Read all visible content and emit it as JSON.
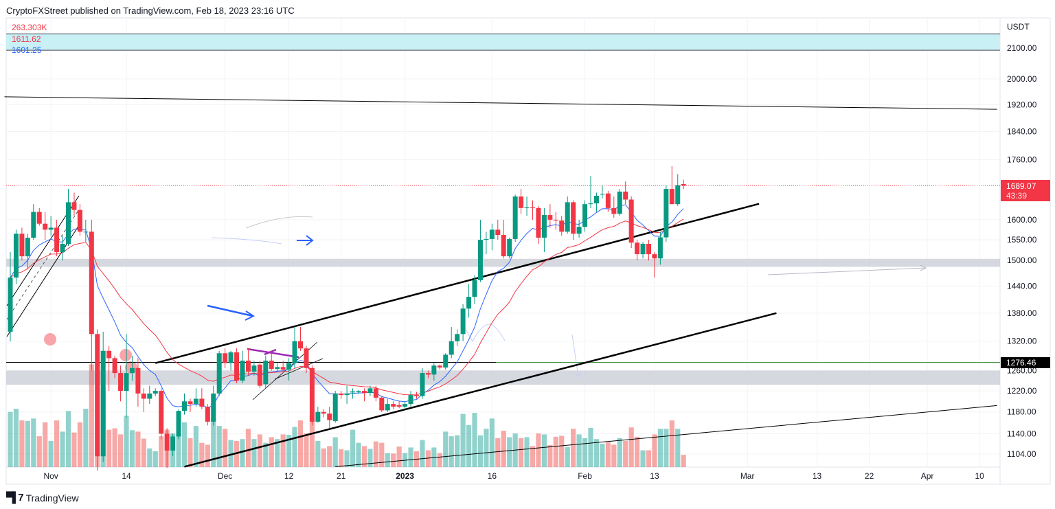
{
  "header": {
    "published": "CryptoFXStreet published on TradingView.com, Feb 18, 2023 23:16 UTC"
  },
  "legend": {
    "volume": "263.303K",
    "ma_red": "1611.62",
    "ma_blue": "1601.25"
  },
  "footer": {
    "brand": "TradingView"
  },
  "colors": {
    "up": "#089981",
    "down": "#f23645",
    "vol_up": "#26a69a",
    "vol_down": "#ef5350",
    "ma_blue": "#2962ff",
    "ma_red": "#f23645",
    "zone_cyan": "#c9f0f5",
    "zone_gray": "#d1d4dc"
  },
  "chart_data": {
    "type": "candlestick",
    "currency": "USDT",
    "y_scale": "log",
    "ylim": [
      1080,
      2160
    ],
    "grid": true,
    "last_price": "1689.07",
    "countdown": "43:39",
    "level_price": "1276.46",
    "y_ticks": [
      "2100.00",
      "2000.00",
      "1920.00",
      "1840.00",
      "1760.00",
      "1600.00",
      "1550.00",
      "1500.00",
      "1440.00",
      "1380.00",
      "1320.00",
      "1260.00",
      "1220.00",
      "1180.00",
      "1140.00",
      "1104.00"
    ],
    "x_ticks": [
      {
        "label": "Nov",
        "date": "2022-11-01"
      },
      {
        "label": "14",
        "date": "2022-11-14"
      },
      {
        "label": "Dec",
        "date": "2022-12-01"
      },
      {
        "label": "12",
        "date": "2022-12-12"
      },
      {
        "label": "21",
        "date": "2022-12-21"
      },
      {
        "label": "2023",
        "date": "2023-01-01",
        "bold": true
      },
      {
        "label": "16",
        "date": "2023-01-16"
      },
      {
        "label": "Feb",
        "date": "2023-02-01"
      },
      {
        "label": "13",
        "date": "2023-02-13"
      },
      {
        "label": "Mar",
        "date": "2023-03-01"
      },
      {
        "label": "13",
        "date": "2023-03-13"
      },
      {
        "label": "22",
        "date": "2023-03-22"
      },
      {
        "label": "Apr",
        "date": "2023-04-01"
      },
      {
        "label": "10",
        "date": "2023-04-10"
      }
    ],
    "series": [
      {
        "type": "ema",
        "period": 9,
        "color": "#2962ff"
      },
      {
        "type": "ema",
        "period": 21,
        "color": "#f23645"
      }
    ],
    "first_date": "2022-10-25",
    "candles_columns": [
      "open",
      "high",
      "low",
      "close",
      "volume_k"
    ],
    "candles": [
      [
        1340,
        1520,
        1320,
        1460,
        1180
      ],
      [
        1460,
        1575,
        1445,
        1565,
        1250
      ],
      [
        1565,
        1580,
        1500,
        1510,
        1000
      ],
      [
        1510,
        1565,
        1480,
        1555,
        990
      ],
      [
        1555,
        1640,
        1550,
        1620,
        1040
      ],
      [
        1620,
        1630,
        1585,
        1590,
        660
      ],
      [
        1590,
        1620,
        1550,
        1575,
        960
      ],
      [
        1575,
        1610,
        1560,
        1580,
        560
      ],
      [
        1580,
        1600,
        1510,
        1520,
        1000
      ],
      [
        1520,
        1560,
        1500,
        1540,
        760
      ],
      [
        1540,
        1680,
        1535,
        1645,
        1200
      ],
      [
        1645,
        1670,
        1610,
        1625,
        740
      ],
      [
        1625,
        1640,
        1560,
        1570,
        960
      ],
      [
        1570,
        1600,
        1545,
        1570,
        1250
      ],
      [
        1570,
        1600,
        1260,
        1335,
        2200
      ],
      [
        1335,
        1345,
        1075,
        1100,
        2250
      ],
      [
        1100,
        1340,
        1090,
        1300,
        1700
      ],
      [
        1300,
        1310,
        1220,
        1285,
        800
      ],
      [
        1285,
        1290,
        1245,
        1255,
        830
      ],
      [
        1255,
        1270,
        1200,
        1220,
        700
      ],
      [
        1220,
        1335,
        1170,
        1255,
        1100
      ],
      [
        1255,
        1290,
        1240,
        1265,
        790
      ],
      [
        1265,
        1285,
        1190,
        1215,
        760
      ],
      [
        1215,
        1225,
        1180,
        1205,
        610
      ],
      [
        1205,
        1230,
        1195,
        1215,
        400
      ],
      [
        1215,
        1225,
        1210,
        1220,
        340
      ],
      [
        1220,
        1225,
        1130,
        1140,
        660
      ],
      [
        1140,
        1150,
        1080,
        1110,
        800
      ],
      [
        1110,
        1140,
        1100,
        1135,
        720
      ],
      [
        1135,
        1185,
        1130,
        1182,
        700
      ],
      [
        1182,
        1215,
        1175,
        1200,
        960
      ],
      [
        1200,
        1205,
        1180,
        1195,
        620
      ],
      [
        1195,
        1225,
        1190,
        1205,
        880
      ],
      [
        1205,
        1225,
        1185,
        1190,
        520
      ],
      [
        1190,
        1195,
        1155,
        1162,
        480
      ],
      [
        1162,
        1230,
        1155,
        1215,
        1050
      ],
      [
        1215,
        1300,
        1210,
        1295,
        880
      ],
      [
        1295,
        1305,
        1265,
        1275,
        820
      ],
      [
        1275,
        1300,
        1260,
        1297,
        580
      ],
      [
        1297,
        1305,
        1235,
        1240,
        560
      ],
      [
        1240,
        1300,
        1235,
        1280,
        600
      ],
      [
        1280,
        1305,
        1250,
        1258,
        820
      ],
      [
        1258,
        1280,
        1250,
        1270,
        600
      ],
      [
        1272,
        1280,
        1225,
        1230,
        700
      ],
      [
        1233,
        1290,
        1225,
        1280,
        520
      ],
      [
        1280,
        1300,
        1260,
        1263,
        640
      ],
      [
        1263,
        1275,
        1258,
        1267,
        600
      ],
      [
        1267,
        1280,
        1255,
        1262,
        700
      ],
      [
        1262,
        1285,
        1240,
        1275,
        690
      ],
      [
        1275,
        1350,
        1265,
        1320,
        860
      ],
      [
        1320,
        1350,
        1300,
        1305,
        1000
      ],
      [
        1305,
        1310,
        1255,
        1265,
        720
      ],
      [
        1265,
        1270,
        1155,
        1162,
        1100
      ],
      [
        1162,
        1190,
        1160,
        1180,
        560
      ],
      [
        1180,
        1185,
        1170,
        1177,
        400
      ],
      [
        1177,
        1190,
        1150,
        1165,
        450
      ],
      [
        1163,
        1220,
        1160,
        1215,
        640
      ],
      [
        1215,
        1220,
        1205,
        1212,
        380
      ],
      [
        1212,
        1230,
        1195,
        1215,
        360
      ],
      [
        1217,
        1225,
        1205,
        1219,
        800
      ],
      [
        1218,
        1222,
        1214,
        1220,
        520
      ],
      [
        1220,
        1225,
        1200,
        1216,
        450
      ],
      [
        1216,
        1230,
        1210,
        1225,
        390
      ],
      [
        1225,
        1230,
        1200,
        1207,
        550
      ],
      [
        1207,
        1210,
        1180,
        1183,
        520
      ],
      [
        1183,
        1205,
        1180,
        1195,
        300
      ],
      [
        1195,
        1200,
        1185,
        1190,
        290
      ],
      [
        1193,
        1200,
        1187,
        1190,
        440
      ],
      [
        1190,
        1200,
        1185,
        1195,
        300
      ],
      [
        1195,
        1220,
        1190,
        1212,
        420
      ],
      [
        1212,
        1218,
        1205,
        1210,
        340
      ],
      [
        1210,
        1265,
        1205,
        1255,
        580
      ],
      [
        1255,
        1260,
        1245,
        1252,
        360
      ],
      [
        1252,
        1275,
        1240,
        1270,
        420
      ],
      [
        1270,
        1272,
        1262,
        1266,
        300
      ],
      [
        1266,
        1295,
        1262,
        1292,
        760
      ],
      [
        1292,
        1350,
        1285,
        1320,
        660
      ],
      [
        1320,
        1345,
        1310,
        1335,
        680
      ],
      [
        1335,
        1400,
        1320,
        1390,
        1140
      ],
      [
        1390,
        1445,
        1370,
        1416,
        900
      ],
      [
        1416,
        1465,
        1400,
        1454,
        1160
      ],
      [
        1454,
        1600,
        1450,
        1550,
        680
      ],
      [
        1550,
        1570,
        1515,
        1552,
        820
      ],
      [
        1552,
        1590,
        1525,
        1575,
        1040
      ],
      [
        1575,
        1600,
        1550,
        1562,
        620
      ],
      [
        1562,
        1600,
        1505,
        1510,
        780
      ],
      [
        1510,
        1555,
        1505,
        1552,
        640
      ],
      [
        1552,
        1665,
        1545,
        1660,
        720
      ],
      [
        1660,
        1680,
        1615,
        1630,
        620
      ],
      [
        1630,
        1660,
        1610,
        1632,
        640
      ],
      [
        1632,
        1650,
        1600,
        1630,
        450
      ],
      [
        1630,
        1635,
        1540,
        1555,
        720
      ],
      [
        1555,
        1630,
        1520,
        1612,
        700
      ],
      [
        1612,
        1640,
        1580,
        1600,
        470
      ],
      [
        1600,
        1620,
        1575,
        1598,
        650
      ],
      [
        1598,
        1610,
        1560,
        1570,
        670
      ],
      [
        1570,
        1660,
        1565,
        1645,
        430
      ],
      [
        1645,
        1650,
        1550,
        1565,
        820
      ],
      [
        1565,
        1600,
        1555,
        1582,
        700
      ],
      [
        1582,
        1650,
        1570,
        1640,
        620
      ],
      [
        1640,
        1715,
        1630,
        1642,
        840
      ],
      [
        1642,
        1670,
        1620,
        1662,
        600
      ],
      [
        1665,
        1690,
        1655,
        1667,
        500
      ],
      [
        1668,
        1675,
        1620,
        1630,
        530
      ],
      [
        1630,
        1660,
        1605,
        1615,
        480
      ],
      [
        1615,
        1680,
        1610,
        1673,
        620
      ],
      [
        1673,
        1700,
        1640,
        1652,
        560
      ],
      [
        1652,
        1660,
        1530,
        1543,
        850
      ],
      [
        1543,
        1550,
        1500,
        1515,
        650
      ],
      [
        1515,
        1545,
        1505,
        1540,
        360
      ],
      [
        1540,
        1550,
        1500,
        1515,
        360
      ],
      [
        1515,
        1520,
        1460,
        1505,
        700
      ],
      [
        1505,
        1570,
        1490,
        1556,
        820
      ],
      [
        1556,
        1690,
        1545,
        1680,
        820
      ],
      [
        1680,
        1742,
        1640,
        1640,
        1000
      ],
      [
        1640,
        1720,
        1635,
        1690,
        820
      ],
      [
        1693,
        1705,
        1680,
        1689,
        263.303
      ]
    ],
    "drawings": {
      "zones": [
        {
          "from": 2093,
          "to": 2148,
          "color": "#c9f0f5"
        },
        {
          "from": 1485,
          "to": 1504,
          "color": "#d1d4dc"
        },
        {
          "from": 1232,
          "to": 1260,
          "color": "#d1d4dc"
        }
      ],
      "trendlines": [
        {
          "p1": [
            "2022-11-19",
            1275
          ],
          "p2": [
            "2023-03-03",
            1641
          ],
          "width": 2.5
        },
        {
          "p1": [
            "2022-11-24",
            1082
          ],
          "p2": [
            "2023-03-06",
            1380
          ],
          "width": 2.5
        },
        {
          "p1": [
            "2022-10-24",
            1944
          ],
          "p2": [
            "2023-04-13",
            1906
          ],
          "width": 1
        },
        {
          "p1": [
            "2022-12-20",
            1082
          ],
          "p2": [
            "2023-04-13",
            1192
          ],
          "width": 1
        }
      ]
    }
  }
}
